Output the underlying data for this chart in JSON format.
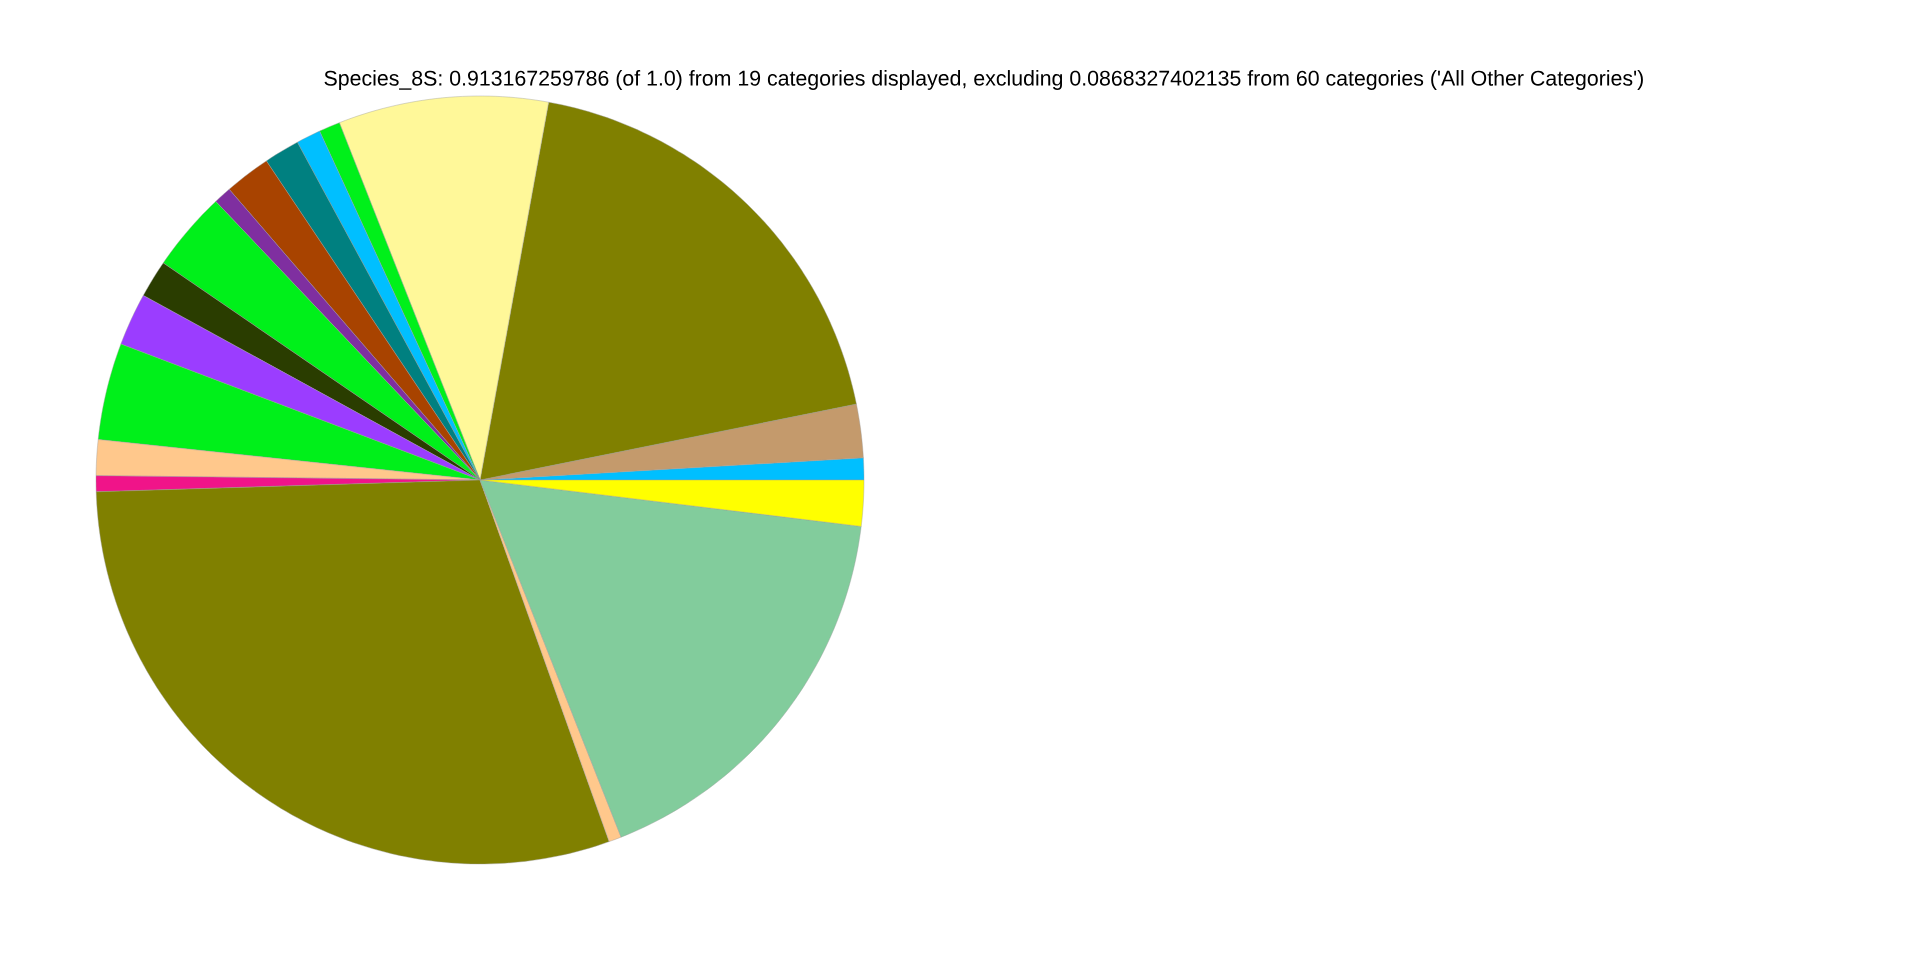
{
  "chart_data": {
    "type": "pie",
    "title": "Species_8S: 0.913167259786 (of 1.0) from 19 categories displayed, excluding 0.0868327402135 from 60 categories ('All Other Categories')",
    "categories": [
      null,
      null,
      null,
      null,
      null,
      null,
      null,
      null,
      null,
      null,
      null,
      null,
      null,
      null,
      null,
      null,
      null,
      null,
      null
    ],
    "values": [
      0.92,
      2.25,
      18.97,
      8.83,
      0.89,
      1.03,
      1.5,
      1.94,
      0.75,
      3.36,
      1.58,
      2.22,
      4.08,
      1.5,
      0.67,
      29.97,
      0.53,
      17.08,
      1.93
    ],
    "colors": [
      "#00bfff",
      "#c49a6c",
      "#808000",
      "#fff899",
      "#00f01a",
      "#00bfff",
      "#008080",
      "#a84300",
      "#7f2fa0",
      "#00f01a",
      "#2a3d00",
      "#9b3dff",
      "#00f01a",
      "#ffc88c",
      "#f01489",
      "#808000",
      "#ffc88c",
      "#82cc9c",
      "#ffff00"
    ]
  }
}
